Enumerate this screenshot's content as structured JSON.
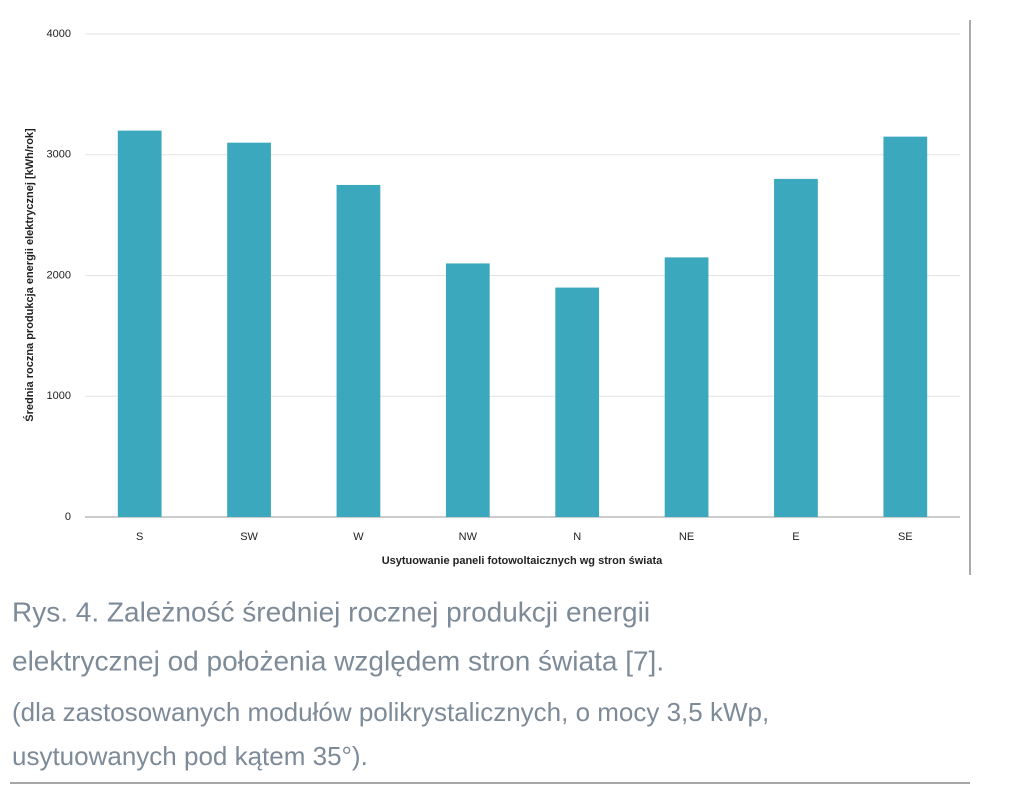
{
  "chart_data": {
    "type": "bar",
    "y_label": "Średnia roczna produkcja energii elektrycznej [kWh/rok]",
    "x_label": "Usytuowanie paneli fotowoltaicznych wg stron świata",
    "categories": [
      "S",
      "SW",
      "W",
      "NW",
      "N",
      "NE",
      "E",
      "SE"
    ],
    "values": [
      3200,
      3100,
      2750,
      2100,
      1900,
      2150,
      2800,
      3150
    ],
    "color": "#3ba8be",
    "ylim": [
      0,
      4000
    ],
    "yticks": [
      0,
      1000,
      2000,
      3000,
      4000
    ],
    "grid": true,
    "caption": [
      "Rys. 4. Zależność średniej rocznej produkcji energii",
      "elektrycznej od położenia względem stron świata [7]."
    ],
    "caption_note": [
      "(dla zastosowanych modułów polikrystalicznych, o mocy 3,5 kWp,",
      "usytuowanych pod kątem 35°)."
    ]
  }
}
